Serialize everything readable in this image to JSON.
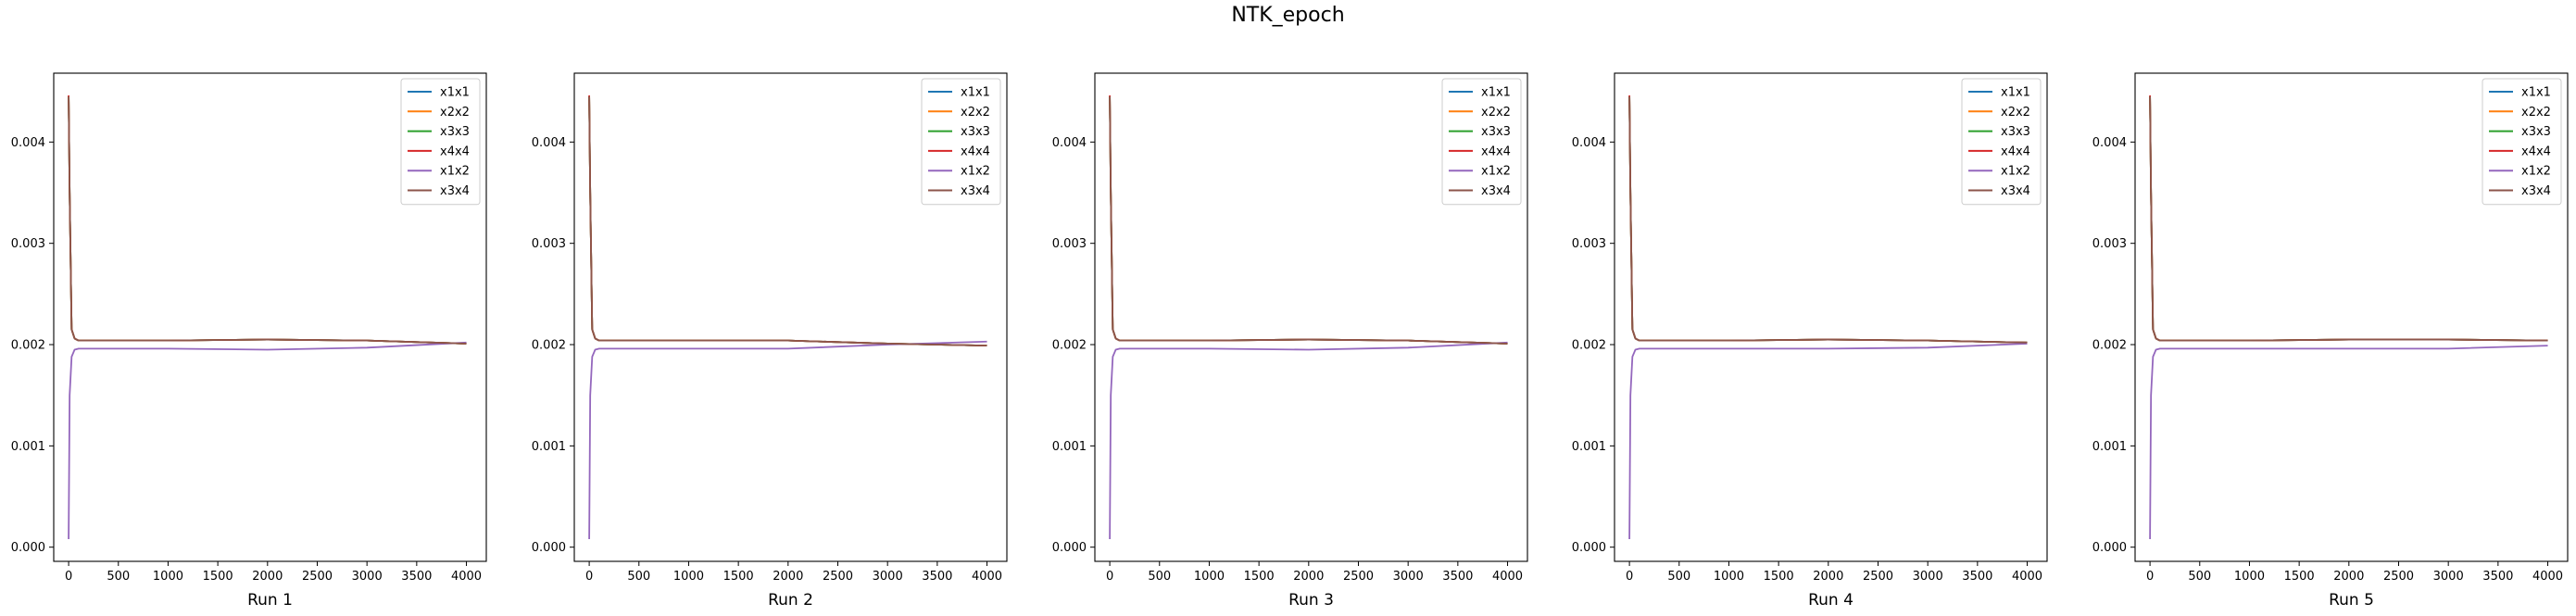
{
  "figure_title": "NTK_epoch",
  "chart_data": [
    {
      "type": "line",
      "xlabel": "Run 1",
      "ylabel": "",
      "xlim": [
        -150,
        4200
      ],
      "ylim": [
        -0.00014,
        0.00468
      ],
      "xticks": [
        0,
        500,
        1000,
        1500,
        2000,
        2500,
        3000,
        3500,
        4000
      ],
      "yticks": [
        0.0,
        0.001,
        0.002,
        0.003,
        0.004
      ],
      "ytick_labels": [
        "0.000",
        "0.001",
        "0.002",
        "0.003",
        "0.004"
      ],
      "legend_position": "upper right",
      "series": [
        {
          "name": "x1x1",
          "color": "#1f77b4",
          "x": [
            0,
            10,
            30,
            60,
            100,
            500,
            1000,
            2000,
            3000,
            4000
          ],
          "y": [
            0.00445,
            0.0035,
            0.00215,
            0.00206,
            0.00204,
            0.00204,
            0.00204,
            0.00205,
            0.00204,
            0.00201
          ]
        },
        {
          "name": "x2x2",
          "color": "#ff7f0e",
          "x": [
            0,
            10,
            30,
            60,
            100,
            500,
            1000,
            2000,
            3000,
            4000
          ],
          "y": [
            0.00445,
            0.0035,
            0.00215,
            0.00206,
            0.00204,
            0.00204,
            0.00204,
            0.00205,
            0.00204,
            0.00201
          ]
        },
        {
          "name": "x3x3",
          "color": "#2ca02c",
          "x": [
            0,
            10,
            30,
            60,
            100,
            500,
            1000,
            2000,
            3000,
            4000
          ],
          "y": [
            0.00445,
            0.0035,
            0.00215,
            0.00206,
            0.00204,
            0.00204,
            0.00204,
            0.00205,
            0.00204,
            0.00201
          ]
        },
        {
          "name": "x4x4",
          "color": "#d62728",
          "x": [
            0,
            10,
            30,
            60,
            100,
            500,
            1000,
            2000,
            3000,
            4000
          ],
          "y": [
            0.00446,
            0.0035,
            0.00215,
            0.00206,
            0.00204,
            0.00204,
            0.00204,
            0.00205,
            0.00204,
            0.00201
          ]
        },
        {
          "name": "x1x2",
          "color": "#9467bd",
          "x": [
            0,
            10,
            30,
            60,
            100,
            500,
            1000,
            2000,
            3000,
            4000
          ],
          "y": [
            8e-05,
            0.0015,
            0.00188,
            0.00195,
            0.00196,
            0.00196,
            0.00196,
            0.00195,
            0.00197,
            0.00202
          ]
        },
        {
          "name": "x3x4",
          "color": "#8c564b",
          "x": [
            0,
            10,
            30,
            60,
            100,
            500,
            1000,
            2000,
            3000,
            4000
          ],
          "y": [
            0.00445,
            0.0035,
            0.00215,
            0.00206,
            0.00204,
            0.00204,
            0.00204,
            0.00205,
            0.00204,
            0.00201
          ]
        }
      ]
    },
    {
      "type": "line",
      "xlabel": "Run 2",
      "ylabel": "",
      "xlim": [
        -150,
        4200
      ],
      "ylim": [
        -0.00014,
        0.00468
      ],
      "xticks": [
        0,
        500,
        1000,
        1500,
        2000,
        2500,
        3000,
        3500,
        4000
      ],
      "yticks": [
        0.0,
        0.001,
        0.002,
        0.003,
        0.004
      ],
      "ytick_labels": [
        "0.000",
        "0.001",
        "0.002",
        "0.003",
        "0.004"
      ],
      "legend_position": "upper right",
      "series": [
        {
          "name": "x1x1",
          "color": "#1f77b4",
          "x": [
            0,
            10,
            30,
            60,
            100,
            500,
            1000,
            2000,
            3000,
            4000
          ],
          "y": [
            0.00445,
            0.0035,
            0.00215,
            0.00206,
            0.00204,
            0.00204,
            0.00204,
            0.00204,
            0.00201,
            0.00199
          ]
        },
        {
          "name": "x2x2",
          "color": "#ff7f0e",
          "x": [
            0,
            10,
            30,
            60,
            100,
            500,
            1000,
            2000,
            3000,
            4000
          ],
          "y": [
            0.00445,
            0.0035,
            0.00215,
            0.00206,
            0.00204,
            0.00204,
            0.00204,
            0.00204,
            0.00201,
            0.00199
          ]
        },
        {
          "name": "x3x3",
          "color": "#2ca02c",
          "x": [
            0,
            10,
            30,
            60,
            100,
            500,
            1000,
            2000,
            3000,
            4000
          ],
          "y": [
            0.00445,
            0.0035,
            0.00215,
            0.00206,
            0.00204,
            0.00204,
            0.00204,
            0.00204,
            0.00201,
            0.00199
          ]
        },
        {
          "name": "x4x4",
          "color": "#d62728",
          "x": [
            0,
            10,
            30,
            60,
            100,
            500,
            1000,
            2000,
            3000,
            4000
          ],
          "y": [
            0.00446,
            0.0035,
            0.00215,
            0.00206,
            0.00204,
            0.00204,
            0.00204,
            0.00204,
            0.00201,
            0.00199
          ]
        },
        {
          "name": "x1x2",
          "color": "#9467bd",
          "x": [
            0,
            10,
            30,
            60,
            100,
            500,
            1000,
            2000,
            3000,
            4000
          ],
          "y": [
            8e-05,
            0.0015,
            0.00188,
            0.00195,
            0.00196,
            0.00196,
            0.00196,
            0.00196,
            0.002,
            0.00203
          ]
        },
        {
          "name": "x3x4",
          "color": "#8c564b",
          "x": [
            0,
            10,
            30,
            60,
            100,
            500,
            1000,
            2000,
            3000,
            4000
          ],
          "y": [
            0.00445,
            0.0035,
            0.00215,
            0.00206,
            0.00204,
            0.00204,
            0.00204,
            0.00204,
            0.00201,
            0.00199
          ]
        }
      ]
    },
    {
      "type": "line",
      "xlabel": "Run 3",
      "ylabel": "",
      "xlim": [
        -150,
        4200
      ],
      "ylim": [
        -0.00014,
        0.00468
      ],
      "xticks": [
        0,
        500,
        1000,
        1500,
        2000,
        2500,
        3000,
        3500,
        4000
      ],
      "yticks": [
        0.0,
        0.001,
        0.002,
        0.003,
        0.004
      ],
      "ytick_labels": [
        "0.000",
        "0.001",
        "0.002",
        "0.003",
        "0.004"
      ],
      "legend_position": "upper right",
      "series": [
        {
          "name": "x1x1",
          "color": "#1f77b4",
          "x": [
            0,
            10,
            30,
            60,
            100,
            500,
            1000,
            2000,
            3000,
            4000
          ],
          "y": [
            0.00445,
            0.0035,
            0.00215,
            0.00206,
            0.00204,
            0.00204,
            0.00204,
            0.00205,
            0.00204,
            0.00201
          ]
        },
        {
          "name": "x2x2",
          "color": "#ff7f0e",
          "x": [
            0,
            10,
            30,
            60,
            100,
            500,
            1000,
            2000,
            3000,
            4000
          ],
          "y": [
            0.00445,
            0.0035,
            0.00215,
            0.00206,
            0.00204,
            0.00204,
            0.00204,
            0.00205,
            0.00204,
            0.00201
          ]
        },
        {
          "name": "x3x3",
          "color": "#2ca02c",
          "x": [
            0,
            10,
            30,
            60,
            100,
            500,
            1000,
            2000,
            3000,
            4000
          ],
          "y": [
            0.00445,
            0.0035,
            0.00215,
            0.00206,
            0.00204,
            0.00204,
            0.00204,
            0.00205,
            0.00204,
            0.00201
          ]
        },
        {
          "name": "x4x4",
          "color": "#d62728",
          "x": [
            0,
            10,
            30,
            60,
            100,
            500,
            1000,
            2000,
            3000,
            4000
          ],
          "y": [
            0.00446,
            0.0035,
            0.00215,
            0.00206,
            0.00204,
            0.00204,
            0.00204,
            0.00205,
            0.00204,
            0.00201
          ]
        },
        {
          "name": "x1x2",
          "color": "#9467bd",
          "x": [
            0,
            10,
            30,
            60,
            100,
            500,
            1000,
            2000,
            3000,
            4000
          ],
          "y": [
            8e-05,
            0.0015,
            0.00188,
            0.00195,
            0.00196,
            0.00196,
            0.00196,
            0.00195,
            0.00197,
            0.00202
          ]
        },
        {
          "name": "x3x4",
          "color": "#8c564b",
          "x": [
            0,
            10,
            30,
            60,
            100,
            500,
            1000,
            2000,
            3000,
            4000
          ],
          "y": [
            0.00445,
            0.0035,
            0.00215,
            0.00206,
            0.00204,
            0.00204,
            0.00204,
            0.00205,
            0.00204,
            0.00201
          ]
        }
      ]
    },
    {
      "type": "line",
      "xlabel": "Run 4",
      "ylabel": "",
      "xlim": [
        -150,
        4200
      ],
      "ylim": [
        -0.00014,
        0.00468
      ],
      "xticks": [
        0,
        500,
        1000,
        1500,
        2000,
        2500,
        3000,
        3500,
        4000
      ],
      "yticks": [
        0.0,
        0.001,
        0.002,
        0.003,
        0.004
      ],
      "ytick_labels": [
        "0.000",
        "0.001",
        "0.002",
        "0.003",
        "0.004"
      ],
      "legend_position": "upper right",
      "series": [
        {
          "name": "x1x1",
          "color": "#1f77b4",
          "x": [
            0,
            10,
            30,
            60,
            100,
            500,
            1000,
            2000,
            3000,
            4000
          ],
          "y": [
            0.00445,
            0.0035,
            0.00215,
            0.00206,
            0.00204,
            0.00204,
            0.00204,
            0.00205,
            0.00204,
            0.00202
          ]
        },
        {
          "name": "x2x2",
          "color": "#ff7f0e",
          "x": [
            0,
            10,
            30,
            60,
            100,
            500,
            1000,
            2000,
            3000,
            4000
          ],
          "y": [
            0.00445,
            0.0035,
            0.00215,
            0.00206,
            0.00204,
            0.00204,
            0.00204,
            0.00205,
            0.00204,
            0.00202
          ]
        },
        {
          "name": "x3x3",
          "color": "#2ca02c",
          "x": [
            0,
            10,
            30,
            60,
            100,
            500,
            1000,
            2000,
            3000,
            4000
          ],
          "y": [
            0.00445,
            0.0035,
            0.00215,
            0.00206,
            0.00204,
            0.00204,
            0.00204,
            0.00205,
            0.00204,
            0.00202
          ]
        },
        {
          "name": "x4x4",
          "color": "#d62728",
          "x": [
            0,
            10,
            30,
            60,
            100,
            500,
            1000,
            2000,
            3000,
            4000
          ],
          "y": [
            0.00446,
            0.0035,
            0.00215,
            0.00206,
            0.00204,
            0.00204,
            0.00204,
            0.00205,
            0.00204,
            0.00202
          ]
        },
        {
          "name": "x1x2",
          "color": "#9467bd",
          "x": [
            0,
            10,
            30,
            60,
            100,
            500,
            1000,
            2000,
            3000,
            4000
          ],
          "y": [
            8e-05,
            0.0015,
            0.00188,
            0.00195,
            0.00196,
            0.00196,
            0.00196,
            0.00196,
            0.00197,
            0.00201
          ]
        },
        {
          "name": "x3x4",
          "color": "#8c564b",
          "x": [
            0,
            10,
            30,
            60,
            100,
            500,
            1000,
            2000,
            3000,
            4000
          ],
          "y": [
            0.00445,
            0.0035,
            0.00215,
            0.00206,
            0.00204,
            0.00204,
            0.00204,
            0.00205,
            0.00204,
            0.00202
          ]
        }
      ]
    },
    {
      "type": "line",
      "xlabel": "Run 5",
      "ylabel": "",
      "xlim": [
        -150,
        4200
      ],
      "ylim": [
        -0.00014,
        0.00468
      ],
      "xticks": [
        0,
        500,
        1000,
        1500,
        2000,
        2500,
        3000,
        3500,
        4000
      ],
      "yticks": [
        0.0,
        0.001,
        0.002,
        0.003,
        0.004
      ],
      "ytick_labels": [
        "0.000",
        "0.001",
        "0.002",
        "0.003",
        "0.004"
      ],
      "legend_position": "upper right",
      "series": [
        {
          "name": "x1x1",
          "color": "#1f77b4",
          "x": [
            0,
            10,
            30,
            60,
            100,
            500,
            1000,
            2000,
            3000,
            4000
          ],
          "y": [
            0.00445,
            0.0035,
            0.00215,
            0.00206,
            0.00204,
            0.00204,
            0.00204,
            0.00205,
            0.00205,
            0.00204
          ]
        },
        {
          "name": "x2x2",
          "color": "#ff7f0e",
          "x": [
            0,
            10,
            30,
            60,
            100,
            500,
            1000,
            2000,
            3000,
            4000
          ],
          "y": [
            0.00445,
            0.0035,
            0.00215,
            0.00206,
            0.00204,
            0.00204,
            0.00204,
            0.00205,
            0.00205,
            0.00204
          ]
        },
        {
          "name": "x3x3",
          "color": "#2ca02c",
          "x": [
            0,
            10,
            30,
            60,
            100,
            500,
            1000,
            2000,
            3000,
            4000
          ],
          "y": [
            0.00445,
            0.0035,
            0.00215,
            0.00206,
            0.00204,
            0.00204,
            0.00204,
            0.00205,
            0.00205,
            0.00204
          ]
        },
        {
          "name": "x4x4",
          "color": "#d62728",
          "x": [
            0,
            10,
            30,
            60,
            100,
            500,
            1000,
            2000,
            3000,
            4000
          ],
          "y": [
            0.00446,
            0.0035,
            0.00215,
            0.00206,
            0.00204,
            0.00204,
            0.00204,
            0.00205,
            0.00205,
            0.00204
          ]
        },
        {
          "name": "x1x2",
          "color": "#9467bd",
          "x": [
            0,
            10,
            30,
            60,
            100,
            500,
            1000,
            2000,
            3000,
            4000
          ],
          "y": [
            8e-05,
            0.0015,
            0.00188,
            0.00195,
            0.00196,
            0.00196,
            0.00196,
            0.00196,
            0.00196,
            0.00199
          ]
        },
        {
          "name": "x3x4",
          "color": "#8c564b",
          "x": [
            0,
            10,
            30,
            60,
            100,
            500,
            1000,
            2000,
            3000,
            4000
          ],
          "y": [
            0.00445,
            0.0035,
            0.00215,
            0.00206,
            0.00204,
            0.00204,
            0.00204,
            0.00205,
            0.00205,
            0.00204
          ]
        }
      ]
    }
  ]
}
